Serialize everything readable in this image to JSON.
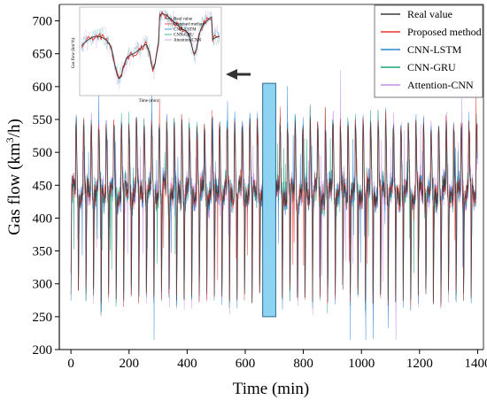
{
  "chart_data": {
    "type": "line",
    "title": "",
    "xlabel": "Time (min)",
    "ylabel_main": "Gas flow (km",
    "ylabel_sup": "3",
    "ylabel_tail": "/h)",
    "xlim": [
      -40,
      1420
    ],
    "ylim": [
      200,
      725
    ],
    "xticks": [
      0,
      200,
      400,
      600,
      800,
      1000,
      1200,
      1400
    ],
    "yticks": [
      200,
      250,
      300,
      350,
      400,
      450,
      500,
      550,
      600,
      650,
      700
    ],
    "grid": false,
    "legend_position": "top-right",
    "series": [
      {
        "name": "Real value",
        "color": "#3a3a3a"
      },
      {
        "name": "Proposed method",
        "color": "#e8342e"
      },
      {
        "name": "CNN-LSTM",
        "color": "#2b83d6"
      },
      {
        "name": "CNN-GRU",
        "color": "#1aa37a"
      },
      {
        "name": "Attention-CNN",
        "color": "#c48ee8"
      }
    ],
    "highlight": {
      "x": [
        660,
        705
      ],
      "y": [
        250,
        605
      ],
      "color": "#8fd3f2"
    },
    "cycle_minutes": 26,
    "points_per_series": 1400,
    "inset": {
      "xlabel": "Time (min)",
      "ylabel": "Gas flow (km³/h)",
      "legend": [
        "Real value",
        "Proposed method",
        "CNN-LSTM",
        "CNN-GRU",
        "Attention-CNN"
      ]
    }
  }
}
